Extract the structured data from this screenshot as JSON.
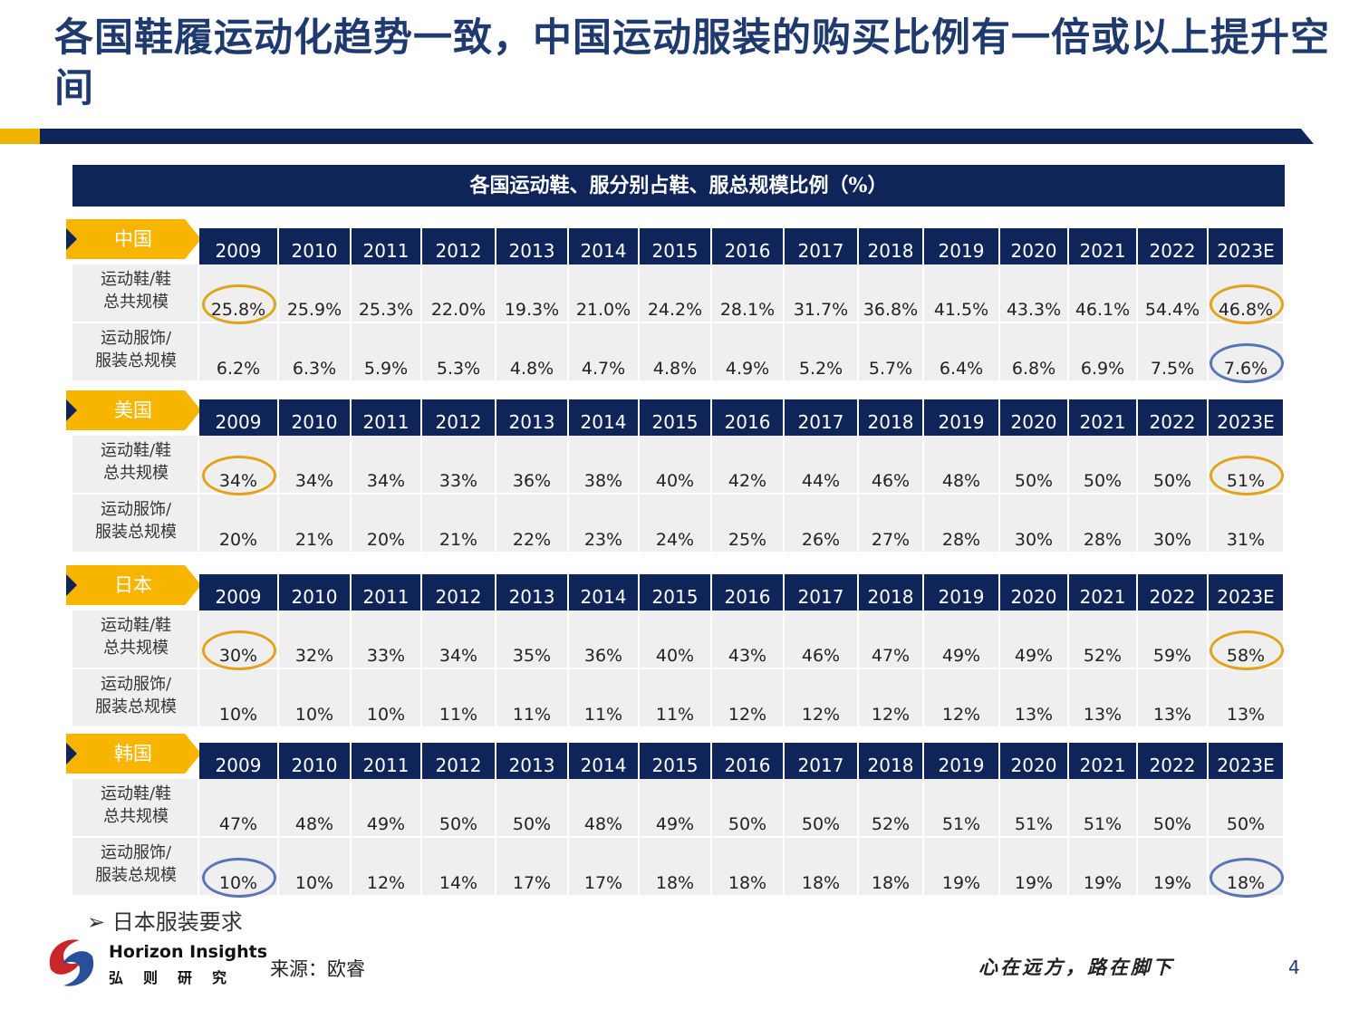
{
  "title": "各国鞋履运动化趋势一致，中国运动服装的购买比例有一倍或以上提升空间",
  "banner": "各国运动鞋、服分别占鞋、服总规模比例（%）",
  "years": [
    "2009",
    "2010",
    "2011",
    "2012",
    "2013",
    "2014",
    "2015",
    "2016",
    "2017",
    "2018",
    "2019",
    "2020",
    "2021",
    "2022",
    "2023E"
  ],
  "row_labels": {
    "shoes": "运动鞋/鞋\n总共规模",
    "apparel": "运动服饰/\n服装总规模"
  },
  "countries": [
    {
      "name": "中国",
      "shoes": [
        "25.8%",
        "25.9%",
        "25.3%",
        "22.0%",
        "19.3%",
        "21.0%",
        "24.2%",
        "28.1%",
        "31.7%",
        "36.8%",
        "41.5%",
        "43.3%",
        "46.1%",
        "54.4%",
        "46.8%"
      ],
      "apparel": [
        "6.2%",
        "6.3%",
        "5.9%",
        "5.3%",
        "4.8%",
        "4.7%",
        "4.8%",
        "4.9%",
        "5.2%",
        "5.7%",
        "6.4%",
        "6.8%",
        "6.9%",
        "7.5%",
        "7.6%"
      ]
    },
    {
      "name": "美国",
      "shoes": [
        "34%",
        "34%",
        "34%",
        "33%",
        "36%",
        "38%",
        "40%",
        "42%",
        "44%",
        "46%",
        "48%",
        "50%",
        "50%",
        "50%",
        "51%"
      ],
      "apparel": [
        "20%",
        "21%",
        "20%",
        "21%",
        "22%",
        "23%",
        "24%",
        "25%",
        "26%",
        "27%",
        "28%",
        "30%",
        "28%",
        "30%",
        "31%"
      ]
    },
    {
      "name": "日本",
      "shoes": [
        "30%",
        "32%",
        "33%",
        "34%",
        "35%",
        "36%",
        "40%",
        "43%",
        "46%",
        "47%",
        "49%",
        "49%",
        "52%",
        "59%",
        "58%"
      ],
      "apparel": [
        "10%",
        "10%",
        "10%",
        "11%",
        "11%",
        "11%",
        "11%",
        "12%",
        "12%",
        "12%",
        "12%",
        "13%",
        "13%",
        "13%",
        "13%"
      ]
    },
    {
      "name": "韩国",
      "shoes": [
        "47%",
        "48%",
        "49%",
        "50%",
        "50%",
        "48%",
        "49%",
        "50%",
        "50%",
        "52%",
        "51%",
        "51%",
        "51%",
        "50%",
        "50%"
      ],
      "apparel": [
        "10%",
        "10%",
        "12%",
        "14%",
        "17%",
        "17%",
        "18%",
        "18%",
        "18%",
        "18%",
        "19%",
        "19%",
        "19%",
        "19%",
        "18%"
      ]
    }
  ],
  "bullet": "日本服装要求",
  "logo": {
    "en": "Horizon Insights",
    "cn": "弘则研究"
  },
  "source": "来源：欧睿",
  "motto": "心在远方，路在脚下",
  "page_number": "4",
  "colors": {
    "navy": "#0f2559",
    "gold": "#f7b500",
    "circle_gold": "#e2a21c",
    "circle_blue": "#5a74b8"
  }
}
